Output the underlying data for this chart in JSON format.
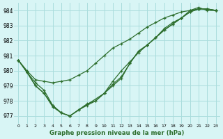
{
  "title": "Graphe pression niveau de la mer (hPa)",
  "bg_color": "#d8f5f5",
  "grid_color": "#aadddd",
  "line_color": "#2d6e2d",
  "xlim": [
    -0.5,
    23.5
  ],
  "ylim": [
    976.5,
    984.5
  ],
  "yticks": [
    977,
    978,
    979,
    980,
    981,
    982,
    983,
    984
  ],
  "xticks": [
    0,
    1,
    2,
    3,
    4,
    5,
    6,
    7,
    8,
    9,
    10,
    11,
    12,
    13,
    14,
    15,
    16,
    17,
    18,
    19,
    20,
    21,
    22,
    23
  ],
  "series": [
    {
      "points": [
        [
          0,
          980.7
        ],
        [
          1,
          980.0
        ],
        [
          2,
          979.4
        ],
        [
          3,
          979.3
        ],
        [
          4,
          979.2
        ],
        [
          5,
          979.3
        ],
        [
          6,
          979.4
        ],
        [
          7,
          979.7
        ],
        [
          8,
          980.0
        ],
        [
          9,
          980.5
        ],
        [
          10,
          981.0
        ],
        [
          11,
          981.5
        ],
        [
          12,
          981.8
        ],
        [
          13,
          982.1
        ],
        [
          14,
          982.5
        ],
        [
          15,
          982.9
        ],
        [
          16,
          983.2
        ],
        [
          17,
          983.5
        ],
        [
          18,
          983.7
        ],
        [
          19,
          983.9
        ],
        [
          20,
          984.0
        ],
        [
          21,
          984.1
        ],
        [
          22,
          984.1
        ],
        [
          23,
          984.0
        ]
      ]
    },
    {
      "points": [
        [
          0,
          980.7
        ],
        [
          1,
          979.9
        ],
        [
          2,
          979.0
        ],
        [
          3,
          978.5
        ],
        [
          4,
          977.6
        ],
        [
          5,
          977.2
        ],
        [
          6,
          977.0
        ],
        [
          7,
          977.4
        ],
        [
          8,
          977.7
        ],
        [
          9,
          978.0
        ],
        [
          10,
          978.5
        ],
        [
          11,
          979.1
        ],
        [
          12,
          979.6
        ],
        [
          13,
          980.5
        ],
        [
          14,
          981.3
        ],
        [
          15,
          981.7
        ],
        [
          16,
          982.2
        ],
        [
          17,
          982.8
        ],
        [
          18,
          983.2
        ],
        [
          19,
          983.5
        ],
        [
          20,
          984.0
        ],
        [
          21,
          984.2
        ],
        [
          22,
          984.0
        ],
        [
          23,
          984.0
        ]
      ]
    },
    {
      "points": [
        [
          0,
          980.7
        ],
        [
          1,
          979.9
        ],
        [
          2,
          979.2
        ],
        [
          3,
          978.7
        ],
        [
          4,
          977.7
        ],
        [
          5,
          977.2
        ],
        [
          6,
          977.0
        ],
        [
          7,
          977.4
        ],
        [
          8,
          977.8
        ],
        [
          9,
          978.0
        ],
        [
          10,
          978.5
        ],
        [
          11,
          979.3
        ],
        [
          12,
          980.0
        ],
        [
          13,
          980.6
        ],
        [
          14,
          981.2
        ],
        [
          15,
          981.7
        ],
        [
          16,
          982.2
        ],
        [
          17,
          982.7
        ],
        [
          18,
          983.1
        ],
        [
          19,
          983.5
        ],
        [
          20,
          983.9
        ],
        [
          21,
          984.1
        ],
        [
          22,
          984.1
        ],
        [
          23,
          984.0
        ]
      ]
    },
    {
      "points": [
        [
          0,
          980.7
        ],
        [
          1,
          979.9
        ],
        [
          2,
          979.0
        ],
        [
          3,
          978.5
        ],
        [
          4,
          977.7
        ],
        [
          5,
          977.2
        ],
        [
          6,
          977.0
        ],
        [
          10,
          978.5
        ],
        [
          11,
          979.0
        ],
        [
          12,
          979.5
        ],
        [
          13,
          980.5
        ],
        [
          14,
          981.3
        ],
        [
          15,
          981.7
        ],
        [
          16,
          982.2
        ],
        [
          17,
          982.7
        ],
        [
          18,
          983.1
        ],
        [
          19,
          983.5
        ],
        [
          20,
          983.9
        ],
        [
          21,
          984.1
        ],
        [
          22,
          984.1
        ],
        [
          23,
          984.0
        ]
      ]
    }
  ]
}
